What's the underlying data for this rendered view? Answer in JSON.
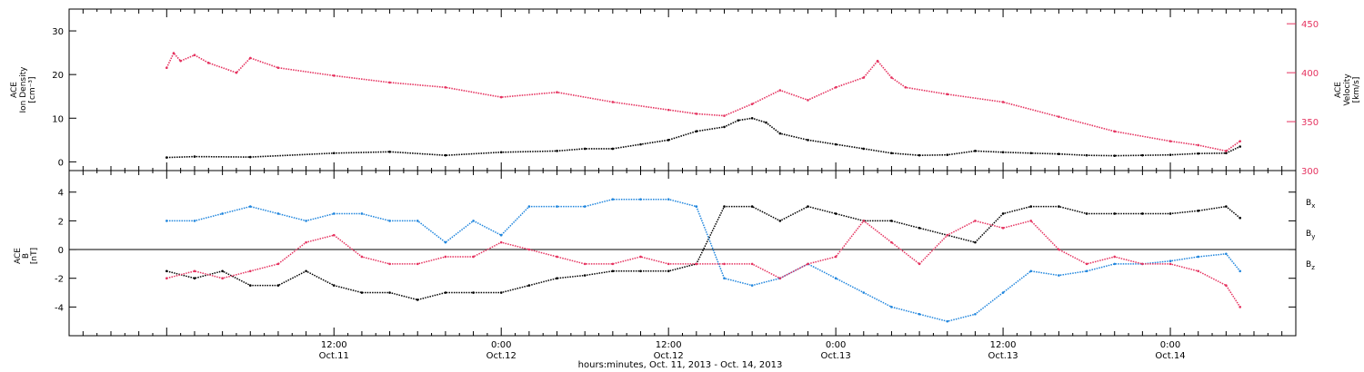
{
  "chart_data": [
    {
      "type": "line",
      "ylabel": [
        "ACE",
        "Ion Density",
        "[cm⁻³]"
      ],
      "y2label": [
        "ACE",
        "Velocity",
        "[km/s]"
      ],
      "ylim": [
        -2,
        35
      ],
      "y2lim": [
        300,
        465
      ],
      "yticks": [
        0,
        10,
        20,
        30
      ],
      "y2ticks": [
        300,
        350,
        400,
        450
      ],
      "series": [
        {
          "axis": "left",
          "color": "#000000",
          "x": [
            0,
            2,
            6,
            12,
            16,
            20,
            24,
            28,
            30,
            32,
            34,
            36,
            38,
            40,
            41,
            42,
            43,
            44,
            46,
            48,
            50,
            52,
            54,
            56,
            58,
            60,
            62,
            64,
            66,
            68,
            70,
            72,
            74,
            76,
            77
          ],
          "values": [
            1,
            1.2,
            1.1,
            2,
            2.3,
            1.5,
            2.2,
            2.5,
            3,
            3,
            4,
            5,
            7,
            8,
            9.5,
            10,
            9,
            6.5,
            5,
            4,
            3,
            2,
            1.5,
            1.6,
            2.5,
            2.2,
            2,
            1.8,
            1.5,
            1.4,
            1.5,
            1.6,
            1.9,
            2,
            3.5
          ]
        },
        {
          "axis": "right",
          "color": "#e5325f",
          "x": [
            0,
            0.5,
            1,
            2,
            3,
            5,
            6,
            8,
            12,
            16,
            20,
            24,
            28,
            32,
            36,
            38,
            40,
            42,
            44,
            46,
            48,
            50,
            51,
            52,
            53,
            56,
            60,
            64,
            68,
            72,
            74,
            76,
            77
          ],
          "values": [
            405,
            420,
            412,
            418,
            410,
            400,
            415,
            405,
            397,
            390,
            385,
            375,
            380,
            370,
            362,
            358,
            356,
            368,
            382,
            372,
            385,
            395,
            412,
            395,
            385,
            378,
            370,
            355,
            340,
            330,
            326,
            320,
            330
          ]
        }
      ]
    },
    {
      "type": "line",
      "ylabel": [
        "ACE",
        "B",
        "[nT]"
      ],
      "ylim": [
        -6,
        5.5
      ],
      "yticks": [
        -4,
        -2,
        0,
        2,
        4
      ],
      "zero_line": true,
      "legend": [
        {
          "main": "B",
          "sub": "x",
          "color": "#000000"
        },
        {
          "main": "B",
          "sub": "y",
          "color": "#1f85dd"
        },
        {
          "main": "B",
          "sub": "z",
          "color": "#e5325f"
        }
      ],
      "series": [
        {
          "name": "Bx",
          "color": "#000000",
          "x": [
            0,
            2,
            4,
            6,
            8,
            10,
            12,
            14,
            16,
            18,
            20,
            22,
            24,
            26,
            28,
            30,
            32,
            34,
            36,
            38,
            40,
            42,
            44,
            46,
            48,
            50,
            52,
            54,
            56,
            58,
            60,
            62,
            64,
            66,
            68,
            70,
            72,
            74,
            76,
            77
          ],
          "values": [
            -1.5,
            -2,
            -1.5,
            -2.5,
            -2.5,
            -1.5,
            -2.5,
            -3,
            -3,
            -3.5,
            -3,
            -3,
            -3,
            -2.5,
            -2,
            -1.8,
            -1.5,
            -1.5,
            -1.5,
            -1,
            3,
            3,
            2,
            3,
            2.5,
            2,
            2,
            1.5,
            1,
            0.5,
            2.5,
            3,
            3,
            2.5,
            2.5,
            2.5,
            2.5,
            2.7,
            3,
            2.2
          ]
        },
        {
          "name": "By",
          "color": "#1f85dd",
          "x": [
            0,
            2,
            4,
            6,
            8,
            10,
            12,
            14,
            16,
            18,
            20,
            22,
            24,
            26,
            28,
            30,
            32,
            34,
            36,
            38,
            40,
            42,
            44,
            46,
            48,
            50,
            52,
            54,
            56,
            58,
            60,
            62,
            64,
            66,
            68,
            70,
            72,
            74,
            76,
            77
          ],
          "values": [
            2,
            2,
            2.5,
            3,
            2.5,
            2,
            2.5,
            2.5,
            2,
            2,
            0.5,
            2,
            1,
            3,
            3,
            3,
            3.5,
            3.5,
            3.5,
            3,
            -2,
            -2.5,
            -2,
            -1,
            -2,
            -3,
            -4,
            -4.5,
            -5,
            -4.5,
            -3,
            -1.5,
            -1.8,
            -1.5,
            -1,
            -1,
            -0.8,
            -0.5,
            -0.3,
            -1.5
          ]
        },
        {
          "name": "Bz",
          "color": "#e5325f",
          "x": [
            0,
            2,
            4,
            6,
            8,
            10,
            12,
            14,
            16,
            18,
            20,
            22,
            24,
            26,
            28,
            30,
            32,
            34,
            36,
            38,
            40,
            42,
            44,
            46,
            48,
            50,
            52,
            54,
            56,
            58,
            60,
            62,
            64,
            66,
            68,
            70,
            72,
            74,
            76,
            77
          ],
          "values": [
            -2,
            -1.5,
            -2,
            -1.5,
            -1,
            0.5,
            1,
            -0.5,
            -1,
            -1,
            -0.5,
            -0.5,
            0.5,
            0,
            -0.5,
            -1,
            -1,
            -0.5,
            -1,
            -1,
            -1,
            -1,
            -2,
            -1,
            -0.5,
            2,
            0.5,
            -1,
            1,
            2,
            1.5,
            2,
            0,
            -1,
            -0.5,
            -1,
            -1,
            -1.5,
            -2.5,
            -4
          ]
        }
      ]
    }
  ],
  "time_axis": {
    "range_hours": [
      -7,
      81
    ],
    "major_ticks": [
      {
        "hour": 12,
        "time": "12:00",
        "date": "Oct.11"
      },
      {
        "hour": 24,
        "time": "0:00",
        "date": "Oct.12"
      },
      {
        "hour": 36,
        "time": "12:00",
        "date": "Oct.12"
      },
      {
        "hour": 48,
        "time": "0:00",
        "date": "Oct.13"
      },
      {
        "hour": 60,
        "time": "12:00",
        "date": "Oct.13"
      },
      {
        "hour": 72,
        "time": "0:00",
        "date": "Oct.14"
      }
    ],
    "caption": "hours:minutes, Oct. 11, 2013 - Oct. 14, 2013"
  }
}
